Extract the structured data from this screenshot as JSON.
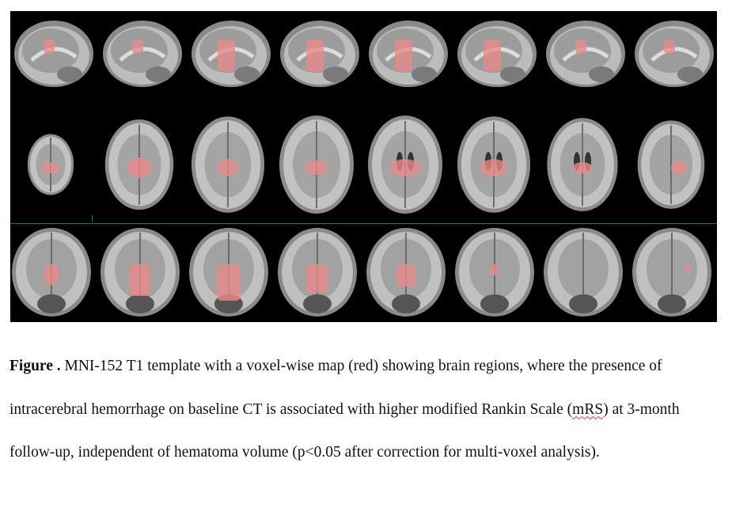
{
  "figure": {
    "image_description_rows": [
      "sagittal",
      "axial",
      "coronal"
    ],
    "overlay_color": "#e98a8a",
    "background_color": "#000000",
    "slices_per_row": 8
  },
  "caption": {
    "label": "Figure .",
    "text_part1": " MNI-152 T1 template with a voxel-wise map (red) showing brain regions, where the presence of intracerebral hemorrhage on baseline CT is associated with higher modified Rankin Scale (",
    "abbrev": "mRS",
    "text_part2": ") at 3-month follow-up, independent of hematoma volume (p<0.05 after correction for multi-voxel analysis)."
  }
}
